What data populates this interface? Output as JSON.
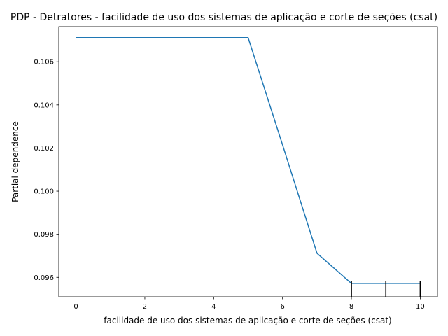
{
  "chart_data": {
    "type": "line",
    "title": "PDP - Detratores - facilidade de uso dos sistemas de aplicação e corte de seções (csat)",
    "xlabel": "facilidade de uso dos sistemas de aplicação e corte de seções (csat)",
    "ylabel": "Partial dependence",
    "xlim": [
      -0.5,
      10.5
    ],
    "ylim": [
      0.0951,
      0.10763
    ],
    "x_ticks": [
      0,
      2,
      4,
      6,
      8,
      10
    ],
    "y_ticks": [
      0.096,
      0.098,
      0.1,
      0.102,
      0.104,
      0.106
    ],
    "x_tick_labels": [
      "0",
      "2",
      "4",
      "6",
      "8",
      "10"
    ],
    "y_tick_labels": [
      "0.096",
      "0.098",
      "0.100",
      "0.102",
      "0.104",
      "0.106"
    ],
    "series": [
      {
        "x": [
          0,
          5,
          6,
          7,
          8,
          9,
          10
        ],
        "values": [
          0.10712,
          0.10712,
          0.10215,
          0.09712,
          0.09572,
          0.09572,
          0.09572
        ]
      }
    ],
    "rug_x": [
      8,
      9,
      10
    ],
    "line_color": "#1f77b4",
    "grid": false
  }
}
